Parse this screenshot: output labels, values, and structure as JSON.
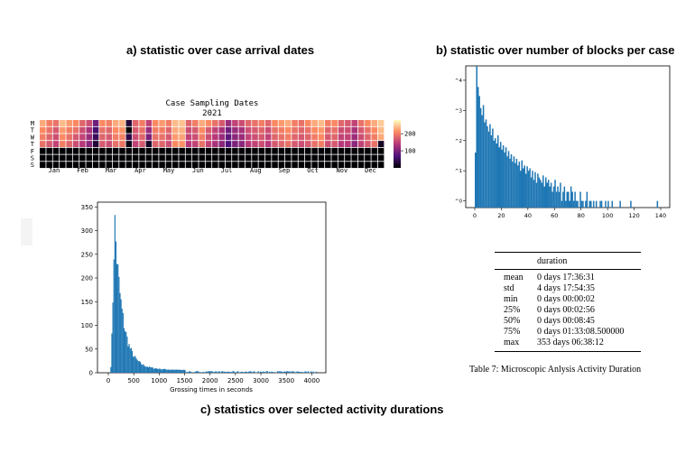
{
  "titles": {
    "a": "a) statistic over case arrival dates",
    "b": "b) statistic over number of blocks per case",
    "c": "c) statistics over selected activity durations"
  },
  "table": {
    "header": "duration",
    "rows": [
      {
        "stat": "mean",
        "value": "0 days 17:36:31"
      },
      {
        "stat": "std",
        "value": "4 days 17:54:35"
      },
      {
        "stat": "min",
        "value": "0 days 00:00:02"
      },
      {
        "stat": "25%",
        "value": "0 days 00:02:56"
      },
      {
        "stat": "50%",
        "value": "0 days 00:08:45"
      },
      {
        "stat": "75%",
        "value": "0 days 01:33:08.500000"
      },
      {
        "stat": "max",
        "value": "353 days 06:38:12"
      }
    ],
    "caption": "Table 7: Microscopic Anlysis Activity Duration"
  },
  "chart_data": [
    {
      "type": "heatmap",
      "title": "Case Sampling Dates",
      "subtitle": "2021",
      "day_labels": [
        "M",
        "T",
        "W",
        "T",
        "F",
        "S",
        "S"
      ],
      "month_labels": [
        "Jan",
        "Feb",
        "Mar",
        "Apr",
        "May",
        "Jun",
        "Jul",
        "Aug",
        "Sep",
        "Oct",
        "Nov",
        "Dec"
      ],
      "weeks": 52,
      "colorbar_ticks": [
        100,
        200
      ],
      "colorbar_range": [
        0,
        280
      ],
      "colormap": "magma",
      "values": [
        [
          230,
          200,
          190,
          240,
          220,
          210,
          180,
          160,
          90,
          210,
          200,
          230,
          235,
          30,
          180,
          200,
          150,
          210,
          220,
          200,
          240,
          245,
          180,
          200,
          230,
          210,
          190,
          170,
          120,
          150,
          160,
          180,
          190,
          200,
          180,
          210,
          220,
          230,
          200,
          190,
          210,
          230,
          240,
          200,
          210,
          180,
          170,
          150,
          190,
          210,
          230,
          250
        ],
        [
          210,
          190,
          170,
          220,
          200,
          190,
          160,
          130,
          60,
          190,
          180,
          210,
          215,
          0,
          170,
          190,
          120,
          200,
          200,
          180,
          230,
          235,
          160,
          170,
          210,
          170,
          150,
          130,
          90,
          120,
          130,
          160,
          170,
          180,
          160,
          190,
          200,
          210,
          190,
          180,
          190,
          210,
          220,
          180,
          190,
          160,
          160,
          130,
          170,
          190,
          210,
          240
        ],
        [
          200,
          180,
          160,
          210,
          190,
          170,
          150,
          120,
          50,
          180,
          170,
          200,
          205,
          40,
          160,
          180,
          100,
          190,
          190,
          170,
          220,
          225,
          150,
          160,
          200,
          160,
          140,
          120,
          80,
          110,
          120,
          150,
          160,
          170,
          150,
          180,
          190,
          200,
          180,
          170,
          180,
          200,
          210,
          170,
          180,
          150,
          150,
          120,
          160,
          180,
          200,
          230
        ],
        [
          190,
          170,
          150,
          200,
          180,
          160,
          140,
          110,
          30,
          170,
          160,
          190,
          195,
          10,
          150,
          170,
          20,
          180,
          180,
          160,
          210,
          215,
          140,
          150,
          190,
          150,
          130,
          110,
          70,
          100,
          110,
          140,
          150,
          160,
          140,
          170,
          180,
          190,
          170,
          160,
          170,
          190,
          200,
          160,
          170,
          140,
          140,
          110,
          150,
          170,
          190,
          20
        ],
        [
          0,
          0,
          0,
          0,
          0,
          0,
          0,
          0,
          0,
          0,
          0,
          0,
          0,
          0,
          0,
          0,
          0,
          0,
          0,
          0,
          0,
          0,
          0,
          0,
          0,
          0,
          0,
          0,
          0,
          0,
          0,
          0,
          0,
          0,
          0,
          0,
          0,
          0,
          0,
          0,
          0,
          0,
          0,
          0,
          0,
          0,
          0,
          0,
          0,
          0,
          0,
          0
        ],
        [
          0,
          0,
          0,
          0,
          0,
          0,
          0,
          0,
          0,
          0,
          0,
          0,
          0,
          0,
          0,
          0,
          0,
          0,
          0,
          0,
          0,
          0,
          0,
          0,
          0,
          0,
          0,
          0,
          0,
          0,
          0,
          0,
          0,
          0,
          0,
          0,
          0,
          0,
          0,
          0,
          0,
          0,
          0,
          0,
          0,
          0,
          0,
          0,
          0,
          0,
          0,
          0
        ],
        [
          0,
          0,
          0,
          0,
          0,
          0,
          0,
          0,
          0,
          0,
          0,
          0,
          0,
          0,
          0,
          0,
          0,
          0,
          0,
          0,
          0,
          0,
          0,
          0,
          0,
          0,
          0,
          0,
          0,
          0,
          0,
          0,
          0,
          0,
          0,
          0,
          0,
          0,
          0,
          0,
          0,
          0,
          0,
          0,
          0,
          0,
          0,
          0,
          0,
          0,
          0,
          0
        ]
      ]
    },
    {
      "type": "bar",
      "scale_y": "log",
      "xlim": [
        0,
        140
      ],
      "ylim": [
        1,
        30000
      ],
      "xticks": [
        0,
        20,
        40,
        60,
        80,
        100,
        120,
        140
      ],
      "yticks": [
        "10^0",
        "10^1",
        "10^2",
        "10^3",
        "10^4"
      ],
      "bins": [
        0,
        1,
        2,
        3,
        4,
        5,
        6,
        7,
        8,
        9,
        10,
        11,
        12,
        13,
        14,
        15,
        16,
        17,
        18,
        19,
        20,
        21,
        22,
        23,
        24,
        25,
        26,
        27,
        28,
        29,
        30,
        31,
        32,
        33,
        34,
        35,
        36,
        37,
        38,
        39,
        40,
        41,
        42,
        43,
        44,
        45,
        46,
        47,
        48,
        49,
        50,
        51,
        52,
        53,
        54,
        55,
        56,
        57,
        58,
        59,
        60,
        61,
        62,
        63,
        64,
        65,
        66,
        67,
        68,
        69,
        70,
        71,
        72,
        73,
        74,
        75,
        76,
        77,
        78,
        79,
        80,
        81,
        82,
        83,
        84,
        85,
        86,
        87,
        88,
        89,
        90,
        91,
        92,
        93,
        94,
        95,
        96,
        97,
        98,
        99,
        100,
        101,
        102,
        103,
        104,
        105,
        106,
        107,
        108,
        109,
        110,
        111,
        112,
        113,
        114,
        115,
        116,
        117,
        118,
        119,
        120,
        121,
        122,
        123,
        124,
        125,
        126,
        127,
        128,
        129,
        130,
        131,
        132,
        133,
        134,
        135,
        136,
        137,
        138,
        139
      ],
      "values": [
        40,
        30000,
        6000,
        3000,
        1200,
        700,
        1500,
        400,
        500,
        300,
        200,
        350,
        150,
        250,
        100,
        120,
        80,
        150,
        60,
        90,
        50,
        70,
        40,
        60,
        30,
        45,
        25,
        35,
        20,
        30,
        18,
        25,
        15,
        20,
        10,
        22,
        12,
        15,
        8,
        14,
        10,
        12,
        6,
        10,
        5,
        9,
        4,
        8,
        6,
        5,
        4,
        7,
        3,
        6,
        4,
        5,
        3,
        4,
        2,
        3,
        5,
        2,
        3,
        2,
        4,
        1,
        2,
        3,
        1,
        2,
        2,
        1,
        3,
        2,
        1,
        2,
        1,
        1,
        0,
        2,
        1,
        1,
        0,
        1,
        2,
        0,
        1,
        1,
        0,
        1,
        0,
        1,
        0,
        0,
        1,
        1,
        0,
        0,
        1,
        0,
        1,
        0,
        0,
        1,
        0,
        0,
        0,
        0,
        0,
        1,
        0,
        0,
        0,
        0,
        0,
        0,
        0,
        1,
        0,
        0,
        0,
        0,
        0,
        0,
        0,
        0,
        0,
        0,
        0,
        0,
        0,
        0,
        0,
        0,
        0,
        0,
        0,
        1,
        0,
        0
      ]
    },
    {
      "type": "bar",
      "xlabel": "Grossing times in seconds",
      "xlim": [
        0,
        4100
      ],
      "ylim": [
        0,
        360
      ],
      "xticks": [
        0,
        500,
        1000,
        1500,
        2000,
        2500,
        3000,
        3500,
        4000
      ],
      "yticks": [
        0,
        50,
        100,
        150,
        200,
        250,
        300,
        350
      ],
      "bin_width_seconds": 20
    }
  ]
}
